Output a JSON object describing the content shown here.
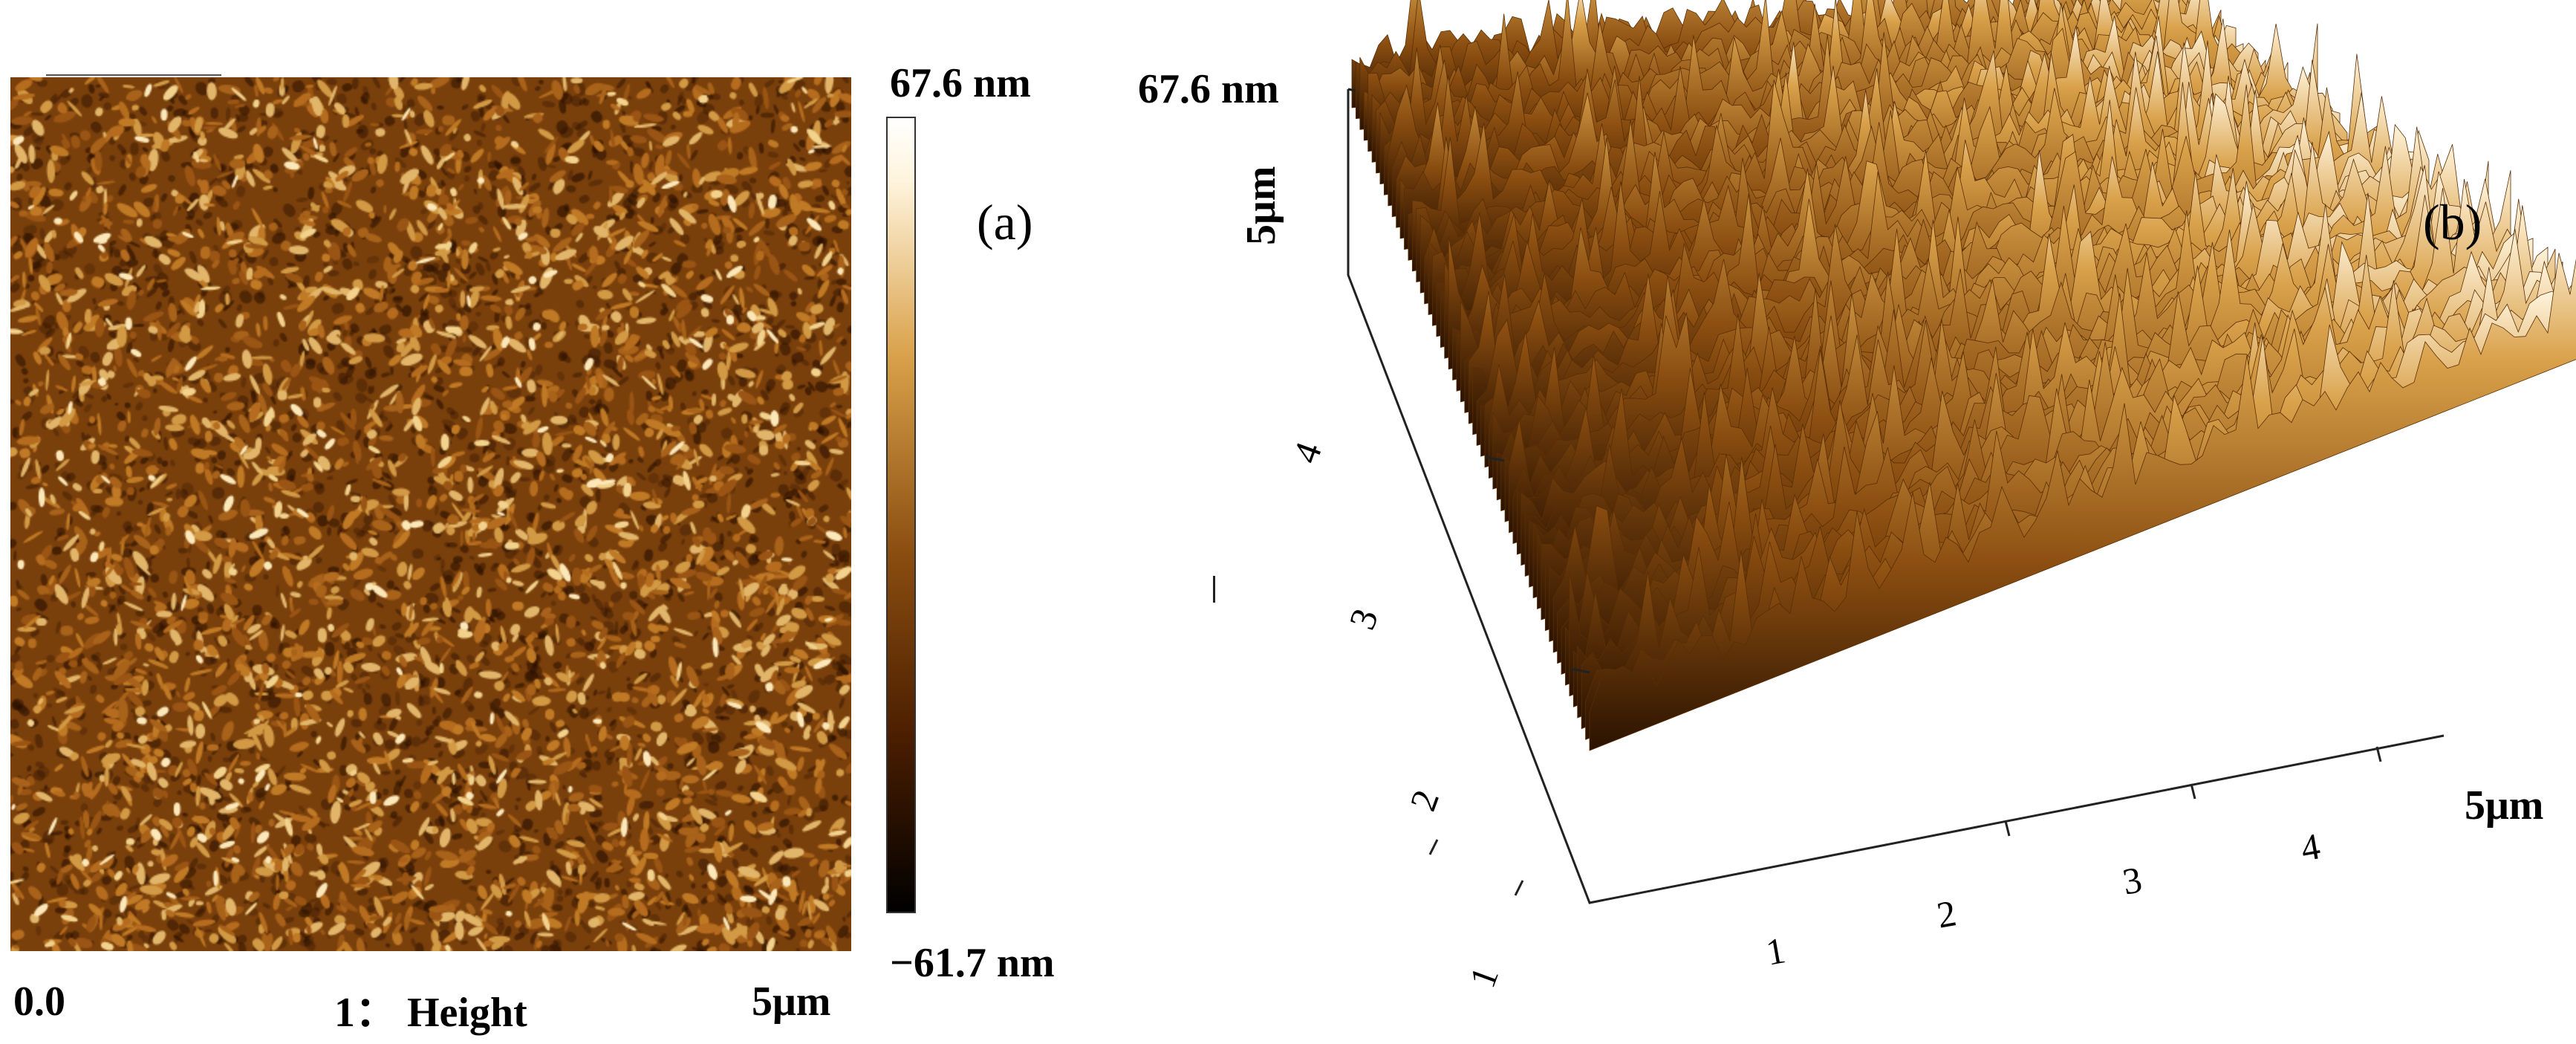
{
  "panel_a": {
    "panel_label": "(a)",
    "colorbar_max": "67.6 nm",
    "colorbar_min": "−61.7 nm",
    "x_axis_start": "0.0",
    "x_axis_end": "5μm",
    "channel_title": "1： Height"
  },
  "panel_b": {
    "panel_label": "(b)",
    "z_max": "67.6 nm",
    "y_axis_end": "5μm",
    "x_axis_end": "5μm",
    "y_ticks": [
      "1",
      "2",
      "3",
      "4"
    ],
    "x_ticks": [
      "1",
      "2",
      "3",
      "4"
    ]
  },
  "colors": {
    "dark": "#1a0b00",
    "mid": "#8a4d10",
    "light": "#d9a14a",
    "highlight": "#fff4dc"
  }
}
